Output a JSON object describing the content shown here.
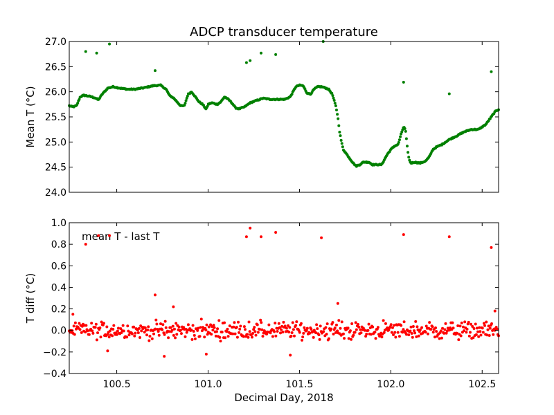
{
  "chart_data": [
    {
      "type": "scatter",
      "title": "ADCP transducer temperature",
      "xlabel": "",
      "ylabel": "Mean T (°C)",
      "xlim": [
        100.24,
        102.59
      ],
      "ylim": [
        24.0,
        27.0
      ],
      "x_ticks": [
        100.5,
        101.0,
        101.5,
        102.0,
        102.5
      ],
      "y_ticks": [
        24.0,
        24.5,
        25.0,
        25.5,
        26.0,
        26.5,
        27.0
      ],
      "y_tick_labels": [
        "24.0",
        "24.5",
        "25.0",
        "25.5",
        "26.0",
        "26.5",
        "27.0"
      ],
      "x_tick_labels_shown": false,
      "color": "#008000",
      "grid": false,
      "series": [
        {
          "trend_x": [
            100.24,
            100.26,
            100.28,
            100.3,
            100.32,
            100.35,
            100.38,
            100.4,
            100.42,
            100.45,
            100.48,
            100.52,
            100.56,
            100.6,
            100.65,
            100.7,
            100.74,
            100.77,
            100.79,
            100.81,
            100.83,
            100.85,
            100.87,
            100.89,
            100.91,
            100.93,
            100.95,
            100.97,
            100.98,
            100.99,
            101.0,
            101.02,
            101.05,
            101.07,
            101.09,
            101.11,
            101.13,
            101.15,
            101.17,
            101.2,
            101.23,
            101.26,
            101.3,
            101.34,
            101.38,
            101.42,
            101.45,
            101.48,
            101.5,
            101.52,
            101.54,
            101.56,
            101.58,
            101.6,
            101.62,
            101.64,
            101.66,
            101.68,
            101.7,
            101.71,
            101.72,
            101.73,
            101.74,
            101.75,
            101.77,
            101.79,
            101.81,
            101.83,
            101.85,
            101.88,
            101.9,
            101.92,
            101.95,
            101.98,
            102.0,
            102.02,
            102.04,
            102.06,
            102.07,
            102.08,
            102.09,
            102.1,
            102.11,
            102.13,
            102.16,
            102.19,
            102.21,
            102.23,
            102.25,
            102.28,
            102.32,
            102.36,
            102.4,
            102.44,
            102.48,
            102.52,
            102.55,
            102.57,
            102.59
          ],
          "trend_y": [
            25.72,
            25.7,
            25.72,
            25.9,
            25.93,
            25.91,
            25.88,
            25.84,
            25.95,
            26.07,
            26.1,
            26.07,
            26.05,
            26.05,
            26.08,
            26.12,
            26.13,
            26.05,
            25.92,
            25.88,
            25.8,
            25.72,
            25.72,
            25.95,
            26.0,
            25.9,
            25.8,
            25.75,
            25.7,
            25.65,
            25.75,
            25.78,
            25.75,
            25.8,
            25.9,
            25.85,
            25.78,
            25.68,
            25.66,
            25.7,
            25.78,
            25.82,
            25.87,
            25.85,
            25.85,
            25.85,
            25.9,
            26.1,
            26.13,
            26.12,
            25.98,
            25.95,
            26.05,
            26.1,
            26.1,
            26.08,
            26.05,
            25.95,
            25.7,
            25.5,
            25.2,
            25.0,
            24.85,
            24.8,
            24.7,
            24.6,
            24.52,
            24.55,
            24.6,
            24.6,
            24.55,
            24.55,
            24.55,
            24.75,
            24.85,
            24.92,
            24.95,
            25.2,
            25.3,
            25.25,
            24.9,
            24.65,
            24.58,
            24.6,
            24.58,
            24.62,
            24.7,
            24.85,
            24.9,
            24.95,
            25.05,
            25.12,
            25.2,
            25.25,
            25.25,
            25.35,
            25.5,
            25.6,
            25.65
          ],
          "outliers_x": [
            100.33,
            100.39,
            100.46,
            100.71,
            101.21,
            101.23,
            101.29,
            101.37,
            101.63,
            102.07,
            102.32,
            102.55
          ],
          "outliers_y": [
            26.8,
            26.77,
            26.95,
            26.42,
            26.58,
            26.62,
            26.77,
            26.74,
            27.0,
            26.19,
            25.96,
            26.4
          ]
        }
      ]
    },
    {
      "type": "scatter",
      "title": "",
      "xlabel": "Decimal Day, 2018",
      "ylabel": "T diff (°C)",
      "annotation": "mean T - last T",
      "xlim": [
        100.24,
        102.59
      ],
      "ylim": [
        -0.4,
        1.0
      ],
      "x_ticks": [
        100.5,
        101.0,
        101.5,
        102.0,
        102.5
      ],
      "x_tick_labels": [
        "100.5",
        "101.0",
        "101.5",
        "102.0",
        "102.5"
      ],
      "y_ticks": [
        -0.4,
        -0.2,
        0.0,
        0.2,
        0.4,
        0.6,
        0.8,
        1.0
      ],
      "y_tick_labels": [
        "−0.4",
        "−0.2",
        "0.0",
        "0.2",
        "0.4",
        "0.6",
        "0.8",
        "1.0"
      ],
      "color": "#ff0000",
      "grid": false,
      "series": [
        {
          "noise_range": [
            -0.12,
            0.12
          ],
          "outliers_x": [
            100.33,
            100.4,
            100.46,
            100.71,
            101.21,
            101.23,
            101.29,
            101.37,
            101.62,
            102.07,
            102.32,
            102.55,
            100.26,
            100.81,
            101.71,
            100.76,
            100.45,
            100.99,
            101.45,
            102.57
          ],
          "outliers_y": [
            0.8,
            0.88,
            0.88,
            0.33,
            0.87,
            0.95,
            0.87,
            0.91,
            0.86,
            0.89,
            0.87,
            0.77,
            0.15,
            0.22,
            0.25,
            -0.24,
            -0.19,
            -0.22,
            -0.23,
            0.18
          ]
        }
      ]
    }
  ]
}
